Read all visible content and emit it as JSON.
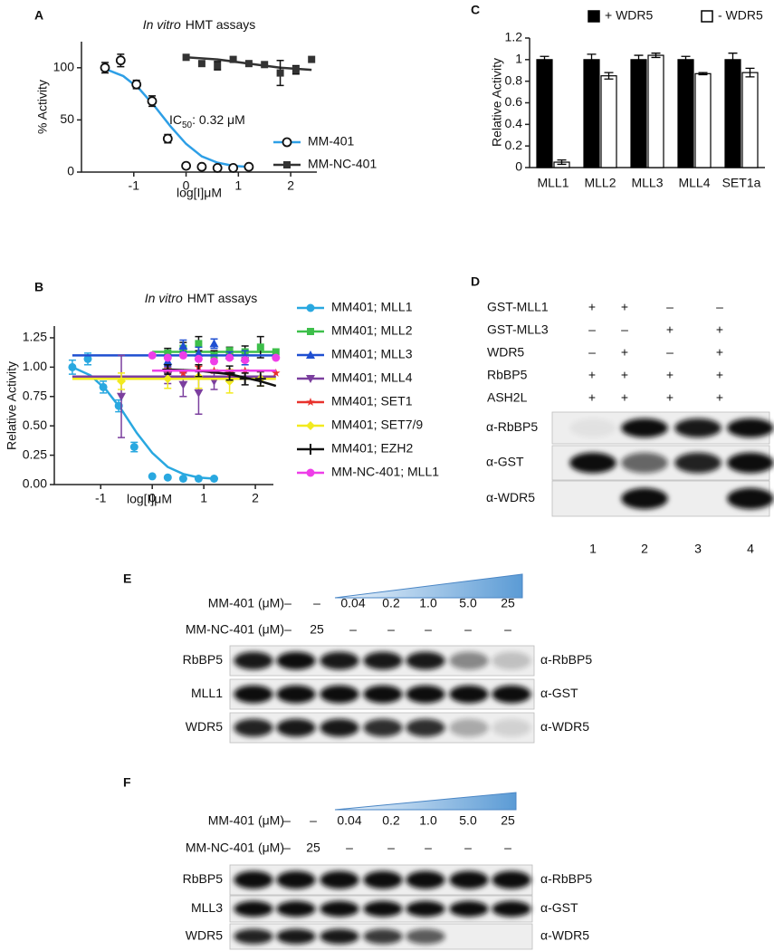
{
  "chart_data": [
    {
      "panel": "A",
      "type": "scatter",
      "title": {
        "italic": "In vitro",
        "rest": "HMT assays"
      },
      "x_label": "log[I]μM",
      "y_label": "% Activity",
      "annotation": {
        "text": "IC",
        "subscript": "50",
        "rest": ": 0.32 μM"
      },
      "xlim": [
        -2,
        2.5
      ],
      "xticks": [
        -1,
        0,
        1,
        2
      ],
      "ylim": [
        0,
        125
      ],
      "yticks": [
        0,
        50,
        100
      ],
      "series": [
        {
          "name": "MM-401",
          "color": "#2e9fe6",
          "marker": "open-circle",
          "x": [
            -1.55,
            -1.25,
            -0.95,
            -0.65,
            -0.35,
            0,
            0.3,
            0.6,
            0.9,
            1.2
          ],
          "values": [
            100,
            107,
            84,
            68,
            32,
            6,
            5,
            4,
            4,
            5
          ],
          "errors": [
            5,
            6,
            4,
            5,
            4,
            null,
            null,
            null,
            null,
            null
          ],
          "fit_x": [
            -1.55,
            -1.2,
            -0.9,
            -0.6,
            -0.3,
            0,
            0.3,
            0.6,
            0.9,
            1.2
          ],
          "fit_values": [
            99,
            92,
            80,
            63,
            44,
            27,
            15,
            9,
            6,
            5
          ]
        },
        {
          "name": "MM-NC-401",
          "color": "#333333",
          "marker": "square",
          "x": [
            0,
            0.3,
            0.6,
            0.9,
            1.2,
            1.5,
            1.8,
            2.1,
            2.4
          ],
          "values": [
            110,
            104,
            102,
            108,
            104,
            103,
            95,
            98,
            108
          ],
          "errors": [
            null,
            null,
            4,
            null,
            null,
            null,
            12,
            4,
            null
          ],
          "fit_x": [
            0,
            0.6,
            1.2,
            1.8,
            2.4
          ],
          "fit_values": [
            110,
            108,
            104,
            100,
            98
          ]
        }
      ]
    },
    {
      "panel": "B",
      "type": "scatter",
      "title": {
        "italic": "In vitro",
        "rest": "HMT assays"
      },
      "x_label": "log[I]μM",
      "y_label": "Relative Activity",
      "xlim": [
        -1.9,
        2.35
      ],
      "xticks": [
        -1,
        0,
        1,
        2
      ],
      "ylim": [
        0,
        1.35
      ],
      "yticks": [
        {
          "value": 0,
          "label": "0.00"
        },
        {
          "value": 0.25,
          "label": "0.25"
        },
        {
          "value": 0.5,
          "label": "0.50"
        },
        {
          "value": 0.75,
          "label": "0.75"
        },
        {
          "value": 1,
          "label": "1.00"
        },
        {
          "value": 1.25,
          "label": "1.25"
        }
      ],
      "series": [
        {
          "name": "MM401; MLL1",
          "color": "#29a8e0",
          "marker": "circle",
          "x": [
            -1.55,
            -1.25,
            -0.95,
            -0.65,
            -0.35,
            0,
            0.3,
            0.6,
            0.9,
            1.2
          ],
          "values": [
            1.0,
            1.07,
            0.83,
            0.67,
            0.32,
            0.07,
            0.06,
            0.05,
            0.05,
            0.05
          ],
          "errors": [
            0.06,
            0.05,
            0.05,
            0.05,
            0.04,
            null,
            null,
            null,
            null,
            null
          ],
          "fit_x": [
            -1.55,
            -1.2,
            -0.9,
            -0.6,
            -0.3,
            0,
            0.3,
            0.6,
            0.9,
            1.2
          ],
          "fit_values": [
            1.0,
            0.93,
            0.81,
            0.64,
            0.44,
            0.27,
            0.15,
            0.09,
            0.06,
            0.05
          ]
        },
        {
          "name": "MM401; MLL2",
          "color": "#3dbf4a",
          "marker": "square",
          "x": [
            0.3,
            0.6,
            0.9,
            1.2,
            1.5,
            1.8,
            2.1,
            2.4
          ],
          "values": [
            1.12,
            1.16,
            1.2,
            1.1,
            1.14,
            1.13,
            1.17,
            1.13
          ],
          "errors": [
            0.04,
            0.05,
            0.06,
            0.04,
            0.03,
            0.05,
            0.09,
            null
          ],
          "fit_x": [
            0,
            2.4
          ],
          "fit_values": [
            1.13,
            1.13
          ]
        },
        {
          "name": "MM401; MLL3",
          "color": "#1f4fd1",
          "marker": "triangle",
          "x": [
            0.3,
            0.6,
            0.9,
            1.2,
            1.5,
            1.8
          ],
          "values": [
            1.05,
            1.18,
            1.12,
            1.2,
            1.1,
            1.08
          ],
          "errors": [
            0.04,
            0.05,
            0.05,
            0.04,
            0.03,
            0.06
          ],
          "fit_x": [
            -1.55,
            2.4
          ],
          "fit_values": [
            1.1,
            1.1
          ]
        },
        {
          "name": "MM401; MLL4",
          "color": "#7b3f9e",
          "marker": "triangle-down",
          "x": [
            -0.6,
            0.3,
            0.6,
            0.9,
            1.2
          ],
          "values": [
            0.75,
            0.93,
            0.85,
            0.78,
            0.88
          ],
          "errors": [
            0.35,
            0.07,
            0.1,
            0.18,
            0.07
          ],
          "fit_x": [
            -1.55,
            2.4
          ],
          "fit_values": [
            0.92,
            0.92
          ]
        },
        {
          "name": "MM401; SET1",
          "color": "#e8322d",
          "marker": "star",
          "x": [
            0.3,
            0.6,
            0.9,
            1.2,
            1.5,
            1.8,
            2.4
          ],
          "values": [
            0.98,
            0.95,
            1.0,
            0.97,
            0.95,
            0.97,
            0.95
          ],
          "fit_x": [
            0,
            2.4
          ],
          "fit_values": [
            0.97,
            0.97
          ]
        },
        {
          "name": "MM401; SET7/9",
          "color": "#f2ea1f",
          "marker": "diamond",
          "x": [
            -0.6,
            0.3,
            0.9,
            1.5,
            2.1
          ],
          "values": [
            0.88,
            0.9,
            0.92,
            0.88,
            0.9
          ],
          "errors": [
            0.07,
            0.08,
            0.1,
            0.1,
            0.06
          ],
          "fit_x": [
            -1.55,
            2.4
          ],
          "fit_values": [
            0.9,
            0.9
          ]
        },
        {
          "name": "MM401; EZH2",
          "color": "#111111",
          "marker": "plus",
          "x": [
            0.3,
            0.9,
            1.5,
            1.8,
            2.1
          ],
          "values": [
            0.98,
            0.97,
            0.95,
            0.9,
            0.9
          ],
          "errors": [
            0.04,
            0.05,
            0.06,
            0.05,
            0.06
          ],
          "fit_x": [
            0.3,
            0.9,
            1.5,
            2.1,
            2.4
          ],
          "fit_values": [
            0.98,
            0.97,
            0.94,
            0.88,
            0.84
          ]
        },
        {
          "name": "MM-NC-401; MLL1",
          "color": "#ee3ee8",
          "marker": "circle",
          "x": [
            0,
            0.3,
            0.6,
            0.9,
            1.2,
            1.5,
            1.8,
            2.4
          ],
          "values": [
            1.1,
            1.08,
            1.1,
            1.07,
            1.05,
            1.08,
            1.06,
            1.08
          ],
          "fit_x": [
            0,
            2.4
          ],
          "fit_values": [
            0.97,
            0.97
          ]
        }
      ]
    },
    {
      "panel": "C",
      "type": "bar",
      "y_label": "Relative Activity",
      "categories": [
        "MLL1",
        "MLL2",
        "MLL3",
        "MLL4",
        "SET1a"
      ],
      "ylim": [
        0,
        1.2
      ],
      "yticks": [
        0,
        0.2,
        0.4,
        0.6,
        0.8,
        1,
        1.2
      ],
      "series": [
        {
          "name": "+ WDR5",
          "color": "#000000",
          "values": [
            1,
            1,
            1,
            1,
            1
          ],
          "errors": [
            0.03,
            0.05,
            0.04,
            0.03,
            0.06
          ]
        },
        {
          "name": "- WDR5",
          "color": "#ffffff",
          "values": [
            0.05,
            0.85,
            1.04,
            0.87,
            0.88
          ],
          "errors": [
            0.02,
            0.03,
            0.02,
            0.01,
            0.04
          ]
        }
      ]
    }
  ],
  "blots": [
    {
      "panel": "D",
      "conditions": [
        {
          "label": "GST-MLL1",
          "lanes": [
            "+",
            "+",
            "–",
            "–"
          ]
        },
        {
          "label": "GST-MLL3",
          "lanes": [
            "–",
            "–",
            "+",
            "+"
          ]
        },
        {
          "label": "WDR5",
          "lanes": [
            "–",
            "+",
            "–",
            "+"
          ]
        },
        {
          "label": "RbBP5",
          "lanes": [
            "+",
            "+",
            "+",
            "+"
          ]
        },
        {
          "label": "ASH2L",
          "lanes": [
            "+",
            "+",
            "+",
            "+"
          ]
        }
      ],
      "antibodies": [
        "α-RbBP5",
        "α-GST",
        "α-WDR5"
      ],
      "lanes": [
        "1",
        "2",
        "3",
        "4"
      ]
    },
    {
      "panel": "E",
      "conditions": [
        {
          "label": "MM-401 (μM)",
          "lanes": [
            "–",
            "–",
            "0.04",
            "0.2",
            "1.0",
            "5.0",
            "25"
          ]
        },
        {
          "label": "MM-NC-401 (μM)",
          "lanes": [
            "–",
            "25",
            "–",
            "–",
            "–",
            "–",
            "–"
          ]
        }
      ],
      "proteins": [
        "RbBP5",
        "MLL1",
        "WDR5"
      ],
      "antibodies": [
        "α-RbBP5",
        "α-GST",
        "α-WDR5"
      ]
    },
    {
      "panel": "F",
      "conditions": [
        {
          "label": "MM-401 (μM)",
          "lanes": [
            "–",
            "–",
            "0.04",
            "0.2",
            "1.0",
            "5.0",
            "25"
          ]
        },
        {
          "label": "MM-NC-401 (μM)",
          "lanes": [
            "–",
            "25",
            "–",
            "–",
            "–",
            "–",
            "–"
          ]
        }
      ],
      "proteins": [
        "RbBP5",
        "MLL3",
        "WDR5"
      ],
      "antibodies": [
        "α-RbBP5",
        "α-GST",
        "α-WDR5"
      ]
    }
  ]
}
